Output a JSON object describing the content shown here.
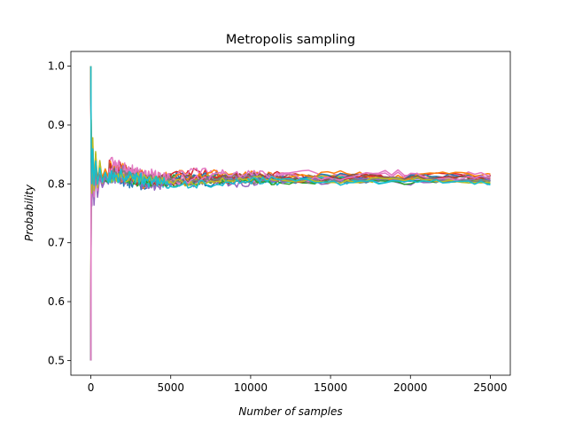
{
  "chart_data": {
    "type": "line",
    "title": "Metropolis sampling",
    "xlabel": "Number of samples",
    "ylabel": "Probability",
    "xlim": [
      -1250,
      26250
    ],
    "ylim": [
      0.475,
      1.025
    ],
    "xticks": [
      0,
      5000,
      10000,
      15000,
      20000,
      25000
    ],
    "xtick_labels": [
      "0",
      "5000",
      "10000",
      "15000",
      "20000",
      "25000"
    ],
    "yticks": [
      0.5,
      0.6,
      0.7,
      0.8,
      0.9,
      1.0
    ],
    "ytick_labels": [
      "0.5",
      "0.6",
      "0.7",
      "0.8",
      "0.9",
      "1.0"
    ],
    "grid": false,
    "legend": "none",
    "n_samples": 25000,
    "series": [
      {
        "color": "#1f77b4",
        "start": 1.0,
        "final": 0.806,
        "peak": 0.845,
        "trough": 0.775,
        "osc": 0.012
      },
      {
        "color": "#ff7f0e",
        "start": 0.5,
        "final": 0.811,
        "peak": 0.87,
        "trough": 0.79,
        "osc": 0.014
      },
      {
        "color": "#2ca02c",
        "start": 1.0,
        "final": 0.808,
        "peak": 0.83,
        "trough": 0.78,
        "osc": 0.01
      },
      {
        "color": "#d62728",
        "start": 0.5,
        "final": 0.813,
        "peak": 0.84,
        "trough": 0.765,
        "osc": 0.015
      },
      {
        "color": "#9467bd",
        "start": 1.0,
        "final": 0.805,
        "peak": 0.82,
        "trough": 0.765,
        "osc": 0.013
      },
      {
        "color": "#8c564b",
        "start": 0.5,
        "final": 0.81,
        "peak": 0.835,
        "trough": 0.78,
        "osc": 0.012
      },
      {
        "color": "#e377c2",
        "start": 1.0,
        "final": 0.815,
        "peak": 0.85,
        "trough": 0.775,
        "osc": 0.016
      },
      {
        "color": "#7f7f7f",
        "start": 0.5,
        "final": 0.807,
        "peak": 0.83,
        "trough": 0.79,
        "osc": 0.009
      },
      {
        "color": "#bcbd22",
        "start": 0.5,
        "final": 0.809,
        "peak": 0.9,
        "trough": 0.79,
        "osc": 0.011
      },
      {
        "color": "#17becf",
        "start": 1.0,
        "final": 0.806,
        "peak": 0.86,
        "trough": 0.785,
        "osc": 0.012
      },
      {
        "color": "#1f77b4",
        "start": 0.5,
        "final": 0.812,
        "peak": 0.83,
        "trough": 0.775,
        "osc": 0.01
      },
      {
        "color": "#ff7f0e",
        "start": 1.0,
        "final": 0.814,
        "peak": 0.86,
        "trough": 0.8,
        "osc": 0.013
      },
      {
        "color": "#2ca02c",
        "start": 0.5,
        "final": 0.804,
        "peak": 0.82,
        "trough": 0.785,
        "osc": 0.01
      },
      {
        "color": "#d62728",
        "start": 1.0,
        "final": 0.81,
        "peak": 0.845,
        "trough": 0.79,
        "osc": 0.012
      },
      {
        "color": "#9467bd",
        "start": 0.5,
        "final": 0.808,
        "peak": 0.825,
        "trough": 0.76,
        "osc": 0.014
      },
      {
        "color": "#8c564b",
        "start": 1.0,
        "final": 0.811,
        "peak": 0.84,
        "trough": 0.79,
        "osc": 0.011
      },
      {
        "color": "#e377c2",
        "start": 0.5,
        "final": 0.813,
        "peak": 0.84,
        "trough": 0.77,
        "osc": 0.015
      },
      {
        "color": "#7f7f7f",
        "start": 1.0,
        "final": 0.807,
        "peak": 0.83,
        "trough": 0.795,
        "osc": 0.009
      },
      {
        "color": "#bcbd22",
        "start": 1.0,
        "final": 0.806,
        "peak": 0.88,
        "trough": 0.78,
        "osc": 0.01
      },
      {
        "color": "#17becf",
        "start": 1.0,
        "final": 0.804,
        "peak": 0.87,
        "trough": 0.79,
        "osc": 0.012
      }
    ]
  }
}
